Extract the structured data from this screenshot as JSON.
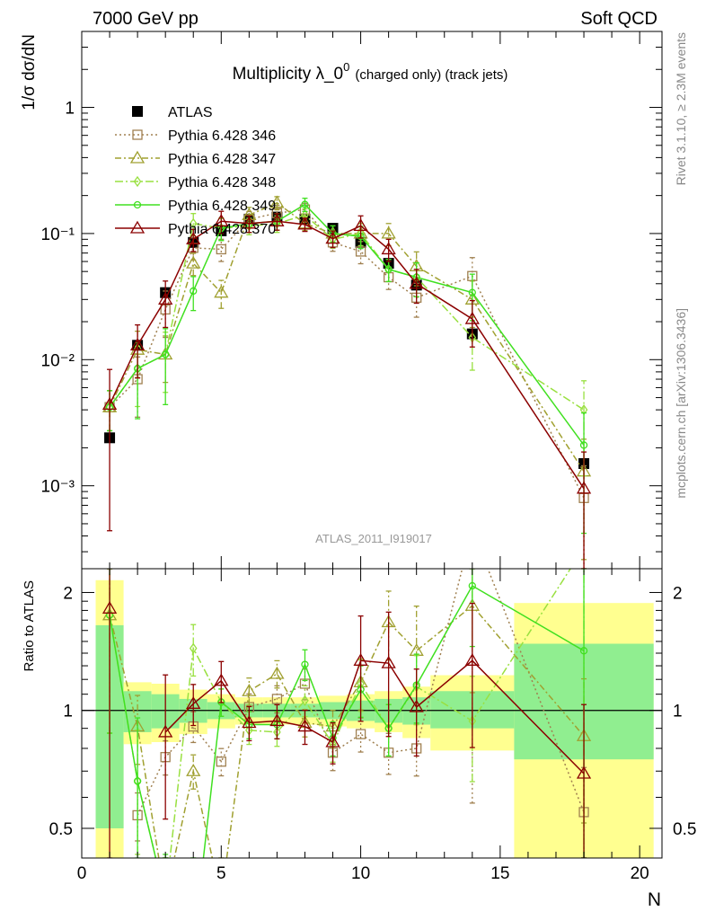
{
  "header": {
    "left": "7000 GeV pp",
    "right": "Soft QCD"
  },
  "side_labels": {
    "rivet": "Rivet 3.1.10, ≥ 2.3M events",
    "mcplots": "mcplots.cern.ch [arXiv:1306.3436]"
  },
  "colors": {
    "atlas": "#000000",
    "p346": "#a08050",
    "p347": "#a0a030",
    "p348": "#99e040",
    "p349": "#40e020",
    "p370": "#8b0000",
    "band_outer": "#ffff90",
    "band_inner": "#90ee90"
  },
  "chart_data": [
    {
      "type": "line",
      "title": "Multiplicity λ_0",
      "title_sup": "0",
      "title_suffix": "(charged only) (track jets)",
      "ylabel": "1/σ dσ/dN",
      "yscale": "log",
      "xlim": [
        0,
        20.8
      ],
      "ylim": [
        0.00022,
        4.0
      ],
      "y_tick_labels": [
        "1",
        "10⁻¹",
        "10⁻²",
        "10⁻³"
      ],
      "analysis_label": "ATLAS_2011_I919017",
      "legend_position": "top-left",
      "series": [
        {
          "name": "ATLAS",
          "style": "data",
          "x": [
            1,
            2,
            3,
            4,
            5,
            6,
            7,
            8,
            9,
            10,
            11,
            12,
            14,
            18
          ],
          "y": [
            0.0024,
            0.013,
            0.034,
            0.085,
            0.105,
            0.13,
            0.135,
            0.13,
            0.11,
            0.085,
            0.058,
            0.039,
            0.016,
            0.0015
          ]
        },
        {
          "name": "Pythia 6.428 346",
          "style": "mc",
          "marker": "square",
          "dash": "2,3",
          "color": "#a08050",
          "x": [
            1,
            2,
            3,
            4,
            5,
            6,
            7,
            8,
            9,
            10,
            11,
            12,
            14,
            18
          ],
          "y": [
            0.0042,
            0.007,
            0.025,
            0.077,
            0.075,
            0.13,
            0.145,
            0.155,
            0.085,
            0.072,
            0.045,
            0.031,
            0.046,
            0.0008
          ],
          "yerr": [
            0.35,
            0.5,
            0.4,
            0.2,
            0.2,
            0.15,
            0.15,
            0.12,
            0.15,
            0.2,
            0.2,
            0.3,
            0.4,
            0.8
          ]
        },
        {
          "name": "Pythia 6.428 347",
          "style": "mc",
          "marker": "triangle",
          "dash": "7,3,2,3",
          "color": "#a0a030",
          "x": [
            1,
            2,
            3,
            4,
            5,
            6,
            7,
            8,
            9,
            10,
            11,
            12,
            14,
            18
          ],
          "y": [
            0.0042,
            0.012,
            0.011,
            0.058,
            0.034,
            0.14,
            0.175,
            0.12,
            0.1,
            0.1,
            0.1,
            0.055,
            0.03,
            0.0013
          ],
          "yerr": [
            0.35,
            0.4,
            0.4,
            0.2,
            0.25,
            0.15,
            0.12,
            0.12,
            0.15,
            0.2,
            0.2,
            0.3,
            0.4,
            0.8
          ]
        },
        {
          "name": "Pythia 6.428 348",
          "style": "mc",
          "marker": "diamond",
          "dash": "9,3,2,3",
          "color": "#99e040",
          "x": [
            1,
            2,
            3,
            4,
            5,
            6,
            7,
            8,
            9,
            10,
            11,
            12,
            14,
            18
          ],
          "y": [
            0.0042,
            0.0085,
            0.011,
            0.12,
            0.11,
            0.115,
            0.12,
            0.14,
            0.09,
            0.1,
            0.052,
            0.045,
            0.015,
            0.004
          ],
          "yerr": [
            0.35,
            0.5,
            0.5,
            0.2,
            0.2,
            0.15,
            0.15,
            0.12,
            0.15,
            0.2,
            0.2,
            0.3,
            0.45,
            0.7
          ]
        },
        {
          "name": "Pythia 6.428 349",
          "style": "mc",
          "marker": "circle",
          "dash": "",
          "color": "#40e020",
          "x": [
            1,
            2,
            3,
            4,
            5,
            6,
            7,
            8,
            9,
            10,
            11,
            12,
            14,
            18
          ],
          "y": [
            0.0042,
            0.0085,
            0.011,
            0.035,
            0.11,
            0.12,
            0.125,
            0.17,
            0.1,
            0.095,
            0.052,
            0.045,
            0.034,
            0.0021
          ],
          "yerr": [
            0.35,
            0.6,
            0.6,
            0.3,
            0.2,
            0.15,
            0.15,
            0.12,
            0.15,
            0.2,
            0.2,
            0.3,
            0.4,
            0.8
          ]
        },
        {
          "name": "Pythia 6.428 370",
          "style": "mc",
          "marker": "triangle",
          "dash": "",
          "color": "#8b0000",
          "x": [
            1,
            2,
            3,
            4,
            5,
            6,
            7,
            8,
            9,
            10,
            11,
            12,
            14,
            18
          ],
          "y": [
            0.0044,
            0.013,
            0.03,
            0.09,
            0.125,
            0.12,
            0.125,
            0.118,
            0.091,
            0.115,
            0.075,
            0.04,
            0.021,
            0.00095
          ],
          "yerr": [
            0.9,
            0.45,
            0.4,
            0.2,
            0.2,
            0.15,
            0.15,
            0.12,
            0.15,
            0.2,
            0.2,
            0.3,
            0.4,
            0.95
          ]
        }
      ]
    },
    {
      "type": "line",
      "ylabel": "Ratio to ATLAS",
      "xlabel": "N",
      "xlim": [
        0,
        20.8
      ],
      "ylim": [
        0.42,
        2.3
      ],
      "yscale": "log",
      "x_ticks": [
        0,
        5,
        10,
        15,
        20
      ],
      "y_ticks": [
        0.5,
        1,
        2
      ],
      "bands": [
        {
          "x0": 0.5,
          "x1": 1.5,
          "inner": [
            0.5,
            1.65
          ],
          "outer": [
            0.4,
            2.15
          ]
        },
        {
          "x0": 1.5,
          "x1": 2.5,
          "inner": [
            0.88,
            1.12
          ],
          "outer": [
            0.82,
            1.18
          ]
        },
        {
          "x0": 2.5,
          "x1": 3.5,
          "inner": [
            0.9,
            1.1
          ],
          "outer": [
            0.83,
            1.17
          ]
        },
        {
          "x0": 3.5,
          "x1": 4.5,
          "inner": [
            0.93,
            1.07
          ],
          "outer": [
            0.87,
            1.13
          ]
        },
        {
          "x0": 4.5,
          "x1": 5.5,
          "inner": [
            0.95,
            1.05
          ],
          "outer": [
            0.9,
            1.1
          ]
        },
        {
          "x0": 5.5,
          "x1": 6.5,
          "inner": [
            0.96,
            1.04
          ],
          "outer": [
            0.92,
            1.08
          ]
        },
        {
          "x0": 6.5,
          "x1": 7.5,
          "inner": [
            0.96,
            1.04
          ],
          "outer": [
            0.92,
            1.08
          ]
        },
        {
          "x0": 7.5,
          "x1": 8.5,
          "inner": [
            0.96,
            1.04
          ],
          "outer": [
            0.92,
            1.08
          ]
        },
        {
          "x0": 8.5,
          "x1": 9.5,
          "inner": [
            0.95,
            1.05
          ],
          "outer": [
            0.91,
            1.09
          ]
        },
        {
          "x0": 9.5,
          "x1": 10.5,
          "inner": [
            0.94,
            1.06
          ],
          "outer": [
            0.9,
            1.1
          ]
        },
        {
          "x0": 10.5,
          "x1": 11.5,
          "inner": [
            0.93,
            1.07
          ],
          "outer": [
            0.88,
            1.12
          ]
        },
        {
          "x0": 11.5,
          "x1": 12.5,
          "inner": [
            0.92,
            1.08
          ],
          "outer": [
            0.85,
            1.15
          ]
        },
        {
          "x0": 12.5,
          "x1": 15.5,
          "inner": [
            0.9,
            1.12
          ],
          "outer": [
            0.79,
            1.23
          ]
        },
        {
          "x0": 15.5,
          "x1": 20.5,
          "inner": [
            0.75,
            1.48
          ],
          "outer": [
            0.4,
            1.88
          ]
        }
      ],
      "series": [
        {
          "name": "Pythia 6.428 346",
          "marker": "square",
          "dash": "2,3",
          "color": "#a08050",
          "x": [
            1,
            2,
            3,
            4,
            5,
            6,
            7,
            8,
            9,
            10,
            11,
            12,
            14,
            18
          ],
          "y": [
            null,
            0.54,
            0.76,
            0.91,
            0.74,
            1.02,
            1.07,
            1.17,
            0.78,
            0.87,
            0.78,
            0.8,
            2.9,
            0.55
          ],
          "yerr": [
            0.5,
            0.14,
            0.1,
            0.09,
            0.08,
            0.08,
            0.08,
            0.09,
            0.1,
            0.1,
            0.12,
            0.15,
            0.8,
            0.3
          ]
        },
        {
          "name": "Pythia 6.428 347",
          "marker": "triangle",
          "dash": "7,3,2,3",
          "color": "#a0a030",
          "x": [
            1,
            2,
            3,
            4,
            5,
            6,
            7,
            8,
            9,
            10,
            11,
            12,
            14,
            18
          ],
          "y": [
            1.75,
            0.91,
            0.33,
            0.7,
            0.33,
            1.12,
            1.24,
            0.93,
            0.91,
            1.18,
            1.68,
            1.42,
            1.85,
            0.86
          ],
          "yerr": [
            0.5,
            0.2,
            0.1,
            0.1,
            0.1,
            0.08,
            0.08,
            0.08,
            0.1,
            0.15,
            0.2,
            0.3,
            0.4,
            0.4
          ]
        },
        {
          "name": "Pythia 6.428 348",
          "marker": "diamond",
          "dash": "9,3,2,3",
          "color": "#99e040",
          "x": [
            1,
            2,
            3,
            4,
            5,
            6,
            7,
            8,
            9,
            10,
            11,
            12,
            14,
            18
          ],
          "y": [
            1.75,
            0.66,
            0.33,
            1.44,
            1.05,
            0.89,
            0.88,
            1.06,
            0.82,
            1.17,
            0.9,
            1.15,
            0.94,
            2.6
          ],
          "yerr": [
            0.5,
            0.35,
            0.2,
            0.15,
            0.08,
            0.08,
            0.08,
            0.09,
            0.1,
            0.15,
            0.15,
            0.2,
            0.3,
            1.0
          ]
        },
        {
          "name": "Pythia 6.428 349",
          "marker": "circle",
          "dash": "",
          "color": "#40e020",
          "x": [
            1,
            2,
            3,
            4,
            5,
            6,
            7,
            8,
            9,
            10,
            11,
            12,
            14,
            18
          ],
          "y": [
            1.75,
            0.66,
            0.33,
            0.25,
            1.05,
            0.92,
            0.92,
            1.31,
            0.85,
            1.13,
            0.9,
            1.16,
            2.08,
            1.42
          ],
          "yerr": [
            0.5,
            0.45,
            0.3,
            0.15,
            0.08,
            0.08,
            0.08,
            0.09,
            0.1,
            0.15,
            0.15,
            0.2,
            0.3,
            0.8
          ]
        },
        {
          "name": "Pythia 6.428 370",
          "marker": "triangle",
          "dash": "",
          "color": "#8b0000",
          "x": [
            1,
            2,
            3,
            4,
            5,
            6,
            7,
            8,
            9,
            10,
            11,
            12,
            14,
            18
          ],
          "y": [
            1.82,
            null,
            0.88,
            1.04,
            1.19,
            0.93,
            0.94,
            0.91,
            0.83,
            1.34,
            1.32,
            1.02,
            1.34,
            0.69
          ],
          "yerr": [
            1.2,
            0.2,
            0.4,
            0.12,
            0.12,
            0.1,
            0.1,
            0.1,
            0.12,
            0.3,
            0.35,
            0.25,
            0.4,
            0.5
          ]
        }
      ]
    }
  ]
}
